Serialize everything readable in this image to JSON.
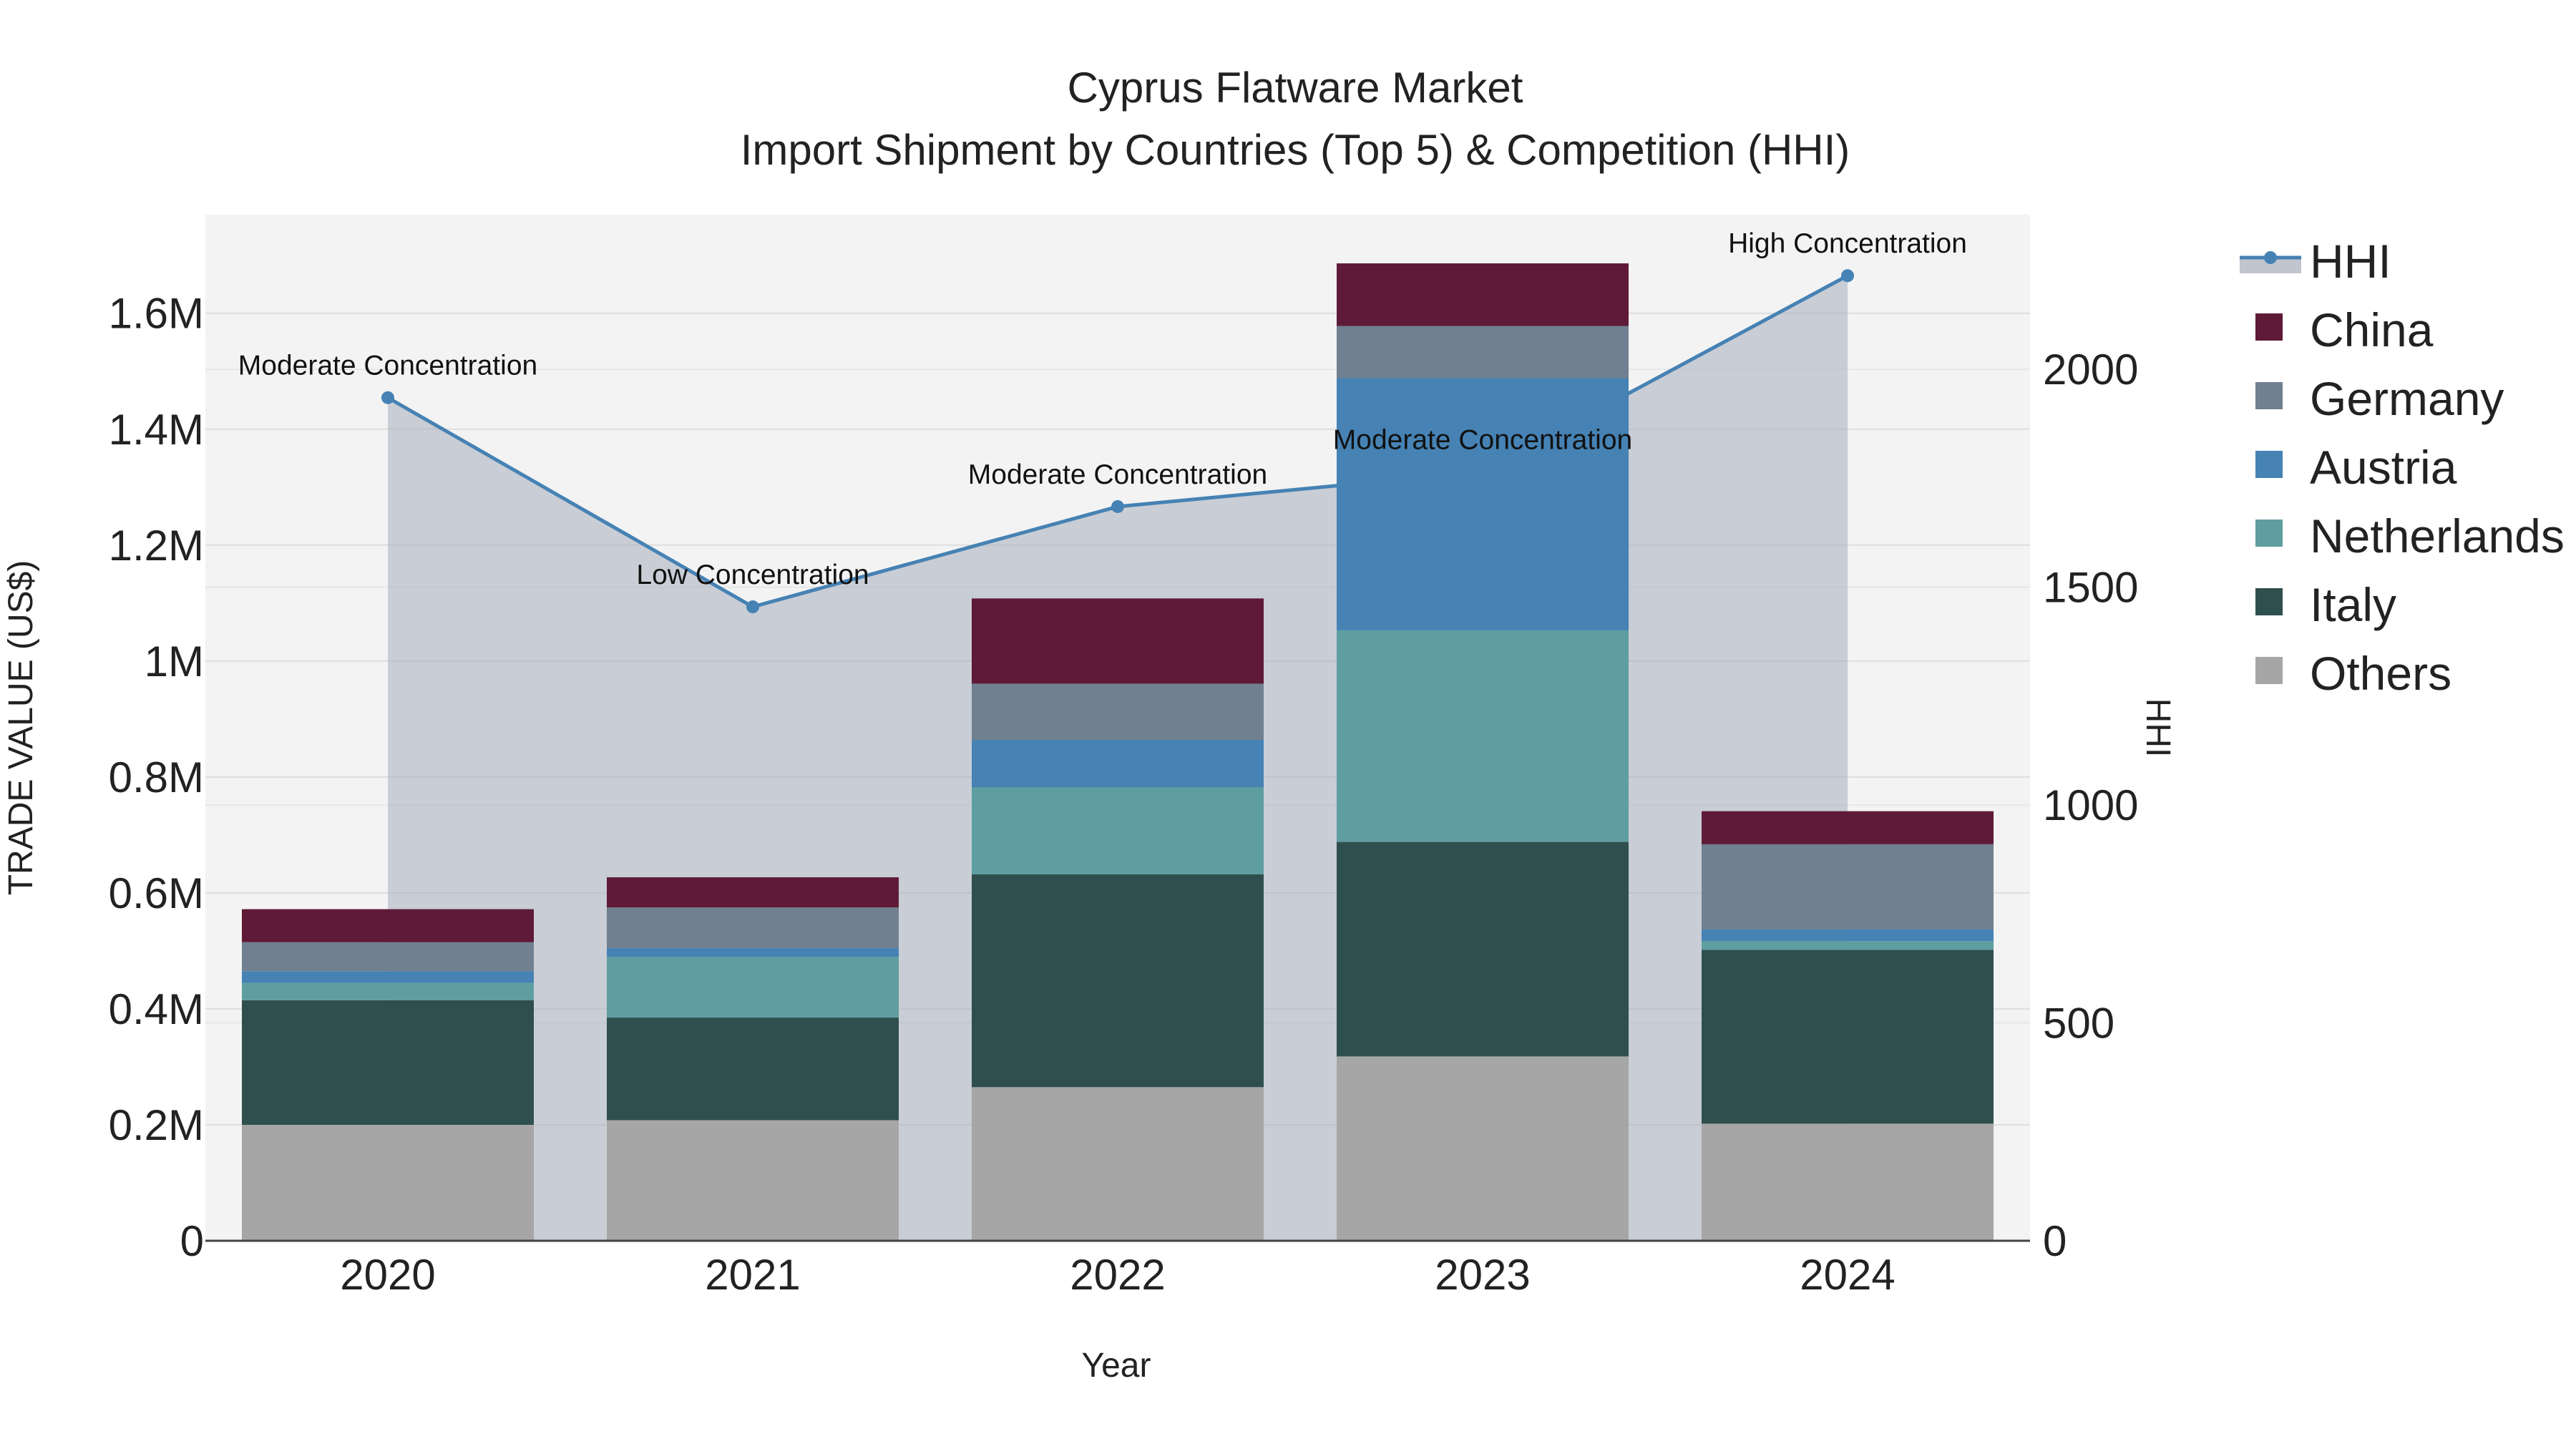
{
  "chart_data": {
    "type": "bar",
    "title": "Cyprus Flatware Market",
    "subtitle": "Import Shipment by Countries (Top 5) & Competition (HHI)",
    "xlabel": "Year",
    "ylabel": "TRADE VALUE (US$)",
    "y2label": "HHI",
    "categories": [
      "2020",
      "2021",
      "2022",
      "2023",
      "2024"
    ],
    "ylim": [
      0,
      1770000
    ],
    "y2lim": [
      0,
      2355
    ],
    "y_ticks": [
      0,
      200000,
      400000,
      600000,
      800000,
      1000000,
      1200000,
      1400000,
      1600000
    ],
    "y_tick_labels": [
      "0",
      "0.2M",
      "0.4M",
      "0.6M",
      "0.8M",
      "1M",
      "1.2M",
      "1.4M",
      "1.6M"
    ],
    "y2_ticks": [
      0,
      500,
      1000,
      1500,
      2000
    ],
    "y2_tick_labels": [
      "0",
      "500",
      "1000",
      "1500",
      "2000"
    ],
    "series": [
      {
        "name": "Others",
        "color": "#a6a6a6",
        "values": [
          200000,
          208000,
          265000,
          318000,
          202000
        ]
      },
      {
        "name": "Italy",
        "color": "#2f4f4f",
        "values": [
          215000,
          177000,
          367000,
          370000,
          300000
        ]
      },
      {
        "name": "Netherlands",
        "color": "#5f9ea0",
        "values": [
          30000,
          105000,
          150000,
          365000,
          15000
        ]
      },
      {
        "name": "Austria",
        "color": "#4682b4",
        "values": [
          20000,
          15000,
          82000,
          435000,
          20000
        ]
      },
      {
        "name": "Germany",
        "color": "#708090",
        "values": [
          50000,
          70000,
          97000,
          90000,
          147000
        ]
      },
      {
        "name": "China",
        "color": "#5f1a37",
        "values": [
          57000,
          52000,
          147000,
          108000,
          57000
        ]
      }
    ],
    "hhi": {
      "name": "HHI",
      "color": "#4682b4",
      "values": [
        1935,
        1455,
        1685,
        1765,
        2215
      ],
      "labels": [
        "Moderate Concentration",
        "Low Concentration",
        "Moderate Concentration",
        "Moderate Concentration",
        "High Concentration"
      ]
    },
    "legend": {
      "position": "right",
      "entries": [
        "HHI",
        "China",
        "Germany",
        "Austria",
        "Netherlands",
        "Italy",
        "Others"
      ]
    }
  }
}
